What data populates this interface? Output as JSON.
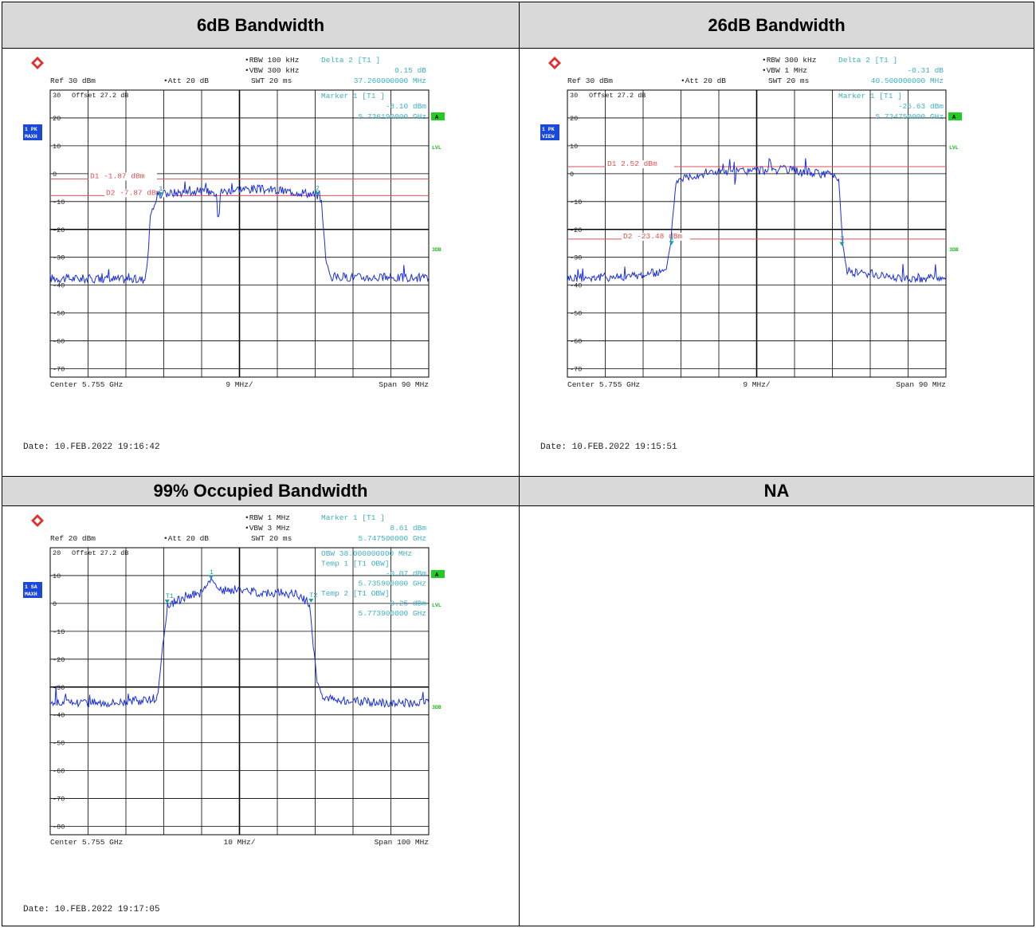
{
  "headers": [
    "6dB Bandwidth",
    "26dB Bandwidth",
    "99% Occupied Bandwidth",
    "NA"
  ],
  "colors": {
    "trace": "#1a2fe0",
    "display_line": "#e05050",
    "marker": "#1aa0a0",
    "info_text": "#40b0c0",
    "side_box": "#1a48d8",
    "green_box": "#22cc22",
    "green_text": "#1cb81c",
    "grid": "#000000"
  },
  "chart_data": [
    {
      "type": "line",
      "title": "6dB Bandwidth",
      "info": {
        "rbw": "RBW 100 kHz",
        "vbw": "VBW 300 kHz",
        "swt": "SWT 20 ms",
        "ref": "Ref  30 dBm",
        "att": "Att  20 dB",
        "delta_label": "Delta 2 [T1 ]",
        "delta_value": "0.15 dB",
        "delta_freq": "37.260000000 MHz",
        "marker_label": "Marker 1 [T1 ]",
        "marker_value": "-8.10 dBm",
        "marker_freq": "5.736190000 GHz",
        "offset": "Offset  27.2 dB",
        "top_label": "30",
        "side_box": "1 PK\nMAXH",
        "right_labels": [
          "A",
          "LVL",
          "3DB"
        ],
        "center": "Center 5.755 GHz",
        "div": "9 MHz/",
        "span": "Span 90 MHz",
        "date": "Date: 10.FEB.2022  19:16:42"
      },
      "ylim": [
        -73,
        30
      ],
      "yticks": [
        20,
        10,
        0,
        -10,
        -20,
        -30,
        -40,
        -50,
        -60,
        -70
      ],
      "xlim": [
        5.71,
        5.8
      ],
      "display_lines": [
        {
          "label": "D1  -1.87 dBm",
          "value": -1.87
        },
        {
          "label": "D2  -7.87 dBm",
          "value": -7.87
        }
      ],
      "markers": [
        {
          "label": "1",
          "x": 5.73619,
          "y": -8.1
        },
        {
          "label": "2",
          "x": 5.77345,
          "y": -7.95
        }
      ],
      "x": [
        5.71,
        5.723,
        5.7325,
        5.7332,
        5.7338,
        5.7355,
        5.737,
        5.74,
        5.745,
        5.7495,
        5.7498,
        5.7502,
        5.7505,
        5.755,
        5.76,
        5.765,
        5.77,
        5.7735,
        5.7745,
        5.7755,
        5.7765,
        5.79,
        5.8
      ],
      "y": [
        -37.5,
        -37.8,
        -38,
        -31,
        -15,
        -8.3,
        -7.2,
        -6.8,
        -6.3,
        -6.6,
        -14,
        -14,
        -6.5,
        -5.4,
        -5.6,
        -6.2,
        -6.6,
        -7.8,
        -10,
        -30,
        -37,
        -37.3,
        -37.4
      ]
    },
    {
      "type": "line",
      "title": "26dB Bandwidth",
      "info": {
        "rbw": "RBW 300 kHz",
        "vbw": "VBW 1 MHz",
        "swt": "SWT 20 ms",
        "ref": "Ref  30 dBm",
        "att": "Att  20 dB",
        "delta_label": "Delta 2 [T1 ]",
        "delta_value": "-0.31 dB",
        "delta_freq": "40.500000000 MHz",
        "marker_label": "Marker 1 [T1 ]",
        "marker_value": "-25.63 dBm",
        "marker_freq": "5.734750000 GHz",
        "offset": "Offset  27.2 dB",
        "top_label": "30",
        "side_box": "1 PK\nVIEW",
        "right_labels": [
          "A",
          "LVL",
          "3DB"
        ],
        "center": "Center 5.755 GHz",
        "div": "9 MHz/",
        "span": "Span 90 MHz",
        "date": "Date: 10.FEB.2022  19:15:51"
      },
      "ylim": [
        -73,
        30
      ],
      "yticks": [
        20,
        10,
        0,
        -10,
        -20,
        -30,
        -40,
        -50,
        -60,
        -70
      ],
      "xlim": [
        5.71,
        5.8
      ],
      "display_lines": [
        {
          "label": "D1  2.52 dBm",
          "value": 2.52
        },
        {
          "label": "D2  -23.48 dBm",
          "value": -23.48
        }
      ],
      "markers": [
        {
          "label": "1",
          "x": 5.73475,
          "y": -25.63
        },
        {
          "label": "2",
          "x": 5.77525,
          "y": -25.94
        }
      ],
      "x": [
        5.71,
        5.725,
        5.7335,
        5.7345,
        5.7358,
        5.737,
        5.74,
        5.745,
        5.7495,
        5.7498,
        5.7502,
        5.755,
        5.76,
        5.765,
        5.7735,
        5.7745,
        5.7755,
        5.7765,
        5.79,
        5.8
      ],
      "y": [
        -37.5,
        -36.8,
        -35,
        -25,
        -3,
        -1.5,
        -0.5,
        0.8,
        0.5,
        -3,
        0.8,
        1.2,
        1.5,
        0.8,
        -0.5,
        -2,
        -26,
        -35,
        -37.5,
        -37.3
      ]
    },
    {
      "type": "line",
      "title": "99% Occupied Bandwidth",
      "info": {
        "rbw": "RBW 1 MHz",
        "vbw": "VBW 3 MHz",
        "swt": "SWT 20 ms",
        "ref": "Ref  20 dBm",
        "att": "Att  20 dB",
        "delta_label": "Marker 1 [T1 ]",
        "delta_value": "8.61 dBm",
        "delta_freq": "5.747500000 GHz",
        "obw": "OBW 38.000000000 MHz",
        "temp1_label": "Temp 1 [T1 OBW]",
        "temp1_value": "-0.07 dBm",
        "temp1_freq": "5.735900000 GHz",
        "temp2_label": "Temp 2 [T1 OBW]",
        "temp2_value": "0.25 dBm",
        "temp2_freq": "5.773900000 GHz",
        "offset": "Offset  27.2 dB",
        "top_label": "20",
        "side_box": "1 SA\nMAXH",
        "right_labels": [
          "A",
          "LVL",
          "3DB"
        ],
        "center": "Center 5.755 GHz",
        "div": "10 MHz/",
        "span": "Span 100 MHz",
        "date": "Date: 10.FEB.2022  19:17:05"
      },
      "ylim": [
        -83,
        20
      ],
      "yticks": [
        10,
        0,
        -10,
        -20,
        -30,
        -40,
        -50,
        -60,
        -70,
        -80
      ],
      "xlim": [
        5.705,
        5.805
      ],
      "display_lines": [],
      "markers": [
        {
          "label": "1",
          "x": 5.7475,
          "y": 8.61
        },
        {
          "label": "T1",
          "x": 5.7359,
          "y": -0.07
        },
        {
          "label": "T2",
          "x": 5.7739,
          "y": 0.25
        }
      ],
      "x": [
        5.705,
        5.72,
        5.733,
        5.7335,
        5.7345,
        5.736,
        5.74,
        5.745,
        5.7475,
        5.75,
        5.755,
        5.76,
        5.765,
        5.77,
        5.7735,
        5.7745,
        5.7755,
        5.777,
        5.79,
        5.805
      ],
      "y": [
        -35.5,
        -35.5,
        -34.5,
        -32,
        -18,
        -1,
        2,
        4,
        8.6,
        4.5,
        5,
        4,
        3.8,
        3.2,
        0,
        -15,
        -28,
        -34,
        -35.5,
        -35.8
      ]
    }
  ]
}
